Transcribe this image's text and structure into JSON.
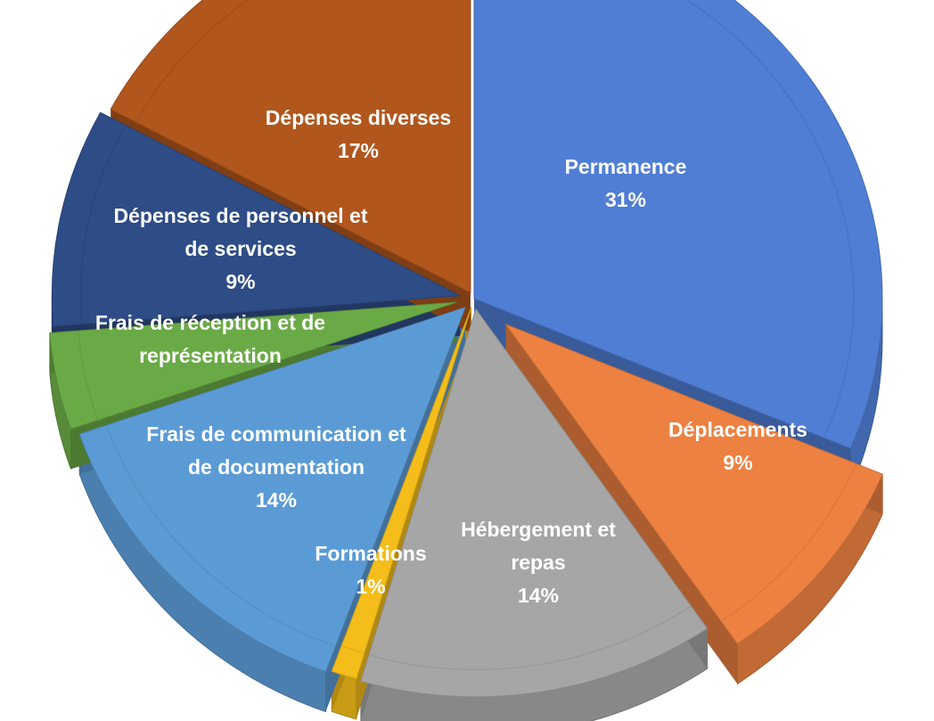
{
  "chart_data": {
    "type": "pie",
    "style": "3d-exploded",
    "title": "",
    "slices": [
      {
        "label": [
          "Permanence"
        ],
        "value": 31,
        "pct": "31%",
        "color": "#4f7ed4"
      },
      {
        "label": [
          "Déplacements"
        ],
        "value": 9,
        "pct": "9%",
        "color": "#ed8141"
      },
      {
        "label": [
          "Hébergement et",
          "repas"
        ],
        "value": 14,
        "pct": "14%",
        "color": "#a6a6a6"
      },
      {
        "label": [
          "Formations"
        ],
        "value": 1,
        "pct": "1%",
        "color": "#f4bd1a"
      },
      {
        "label": [
          "Frais de communication et",
          "de documentation"
        ],
        "value": 14,
        "pct": "14%",
        "color": "#5b9bd5"
      },
      {
        "label": [
          "Frais de réception et de",
          "représentation"
        ],
        "value": 4,
        "pct": "",
        "color": "#6aaa46"
      },
      {
        "label": [
          "Dépenses de personnel et",
          "de services"
        ],
        "value": 9,
        "pct": "9%",
        "color": "#2e4c86"
      },
      {
        "label": [
          "Dépenses diverses"
        ],
        "value": 17,
        "pct": "17%",
        "color": "#b1561c"
      }
    ]
  }
}
